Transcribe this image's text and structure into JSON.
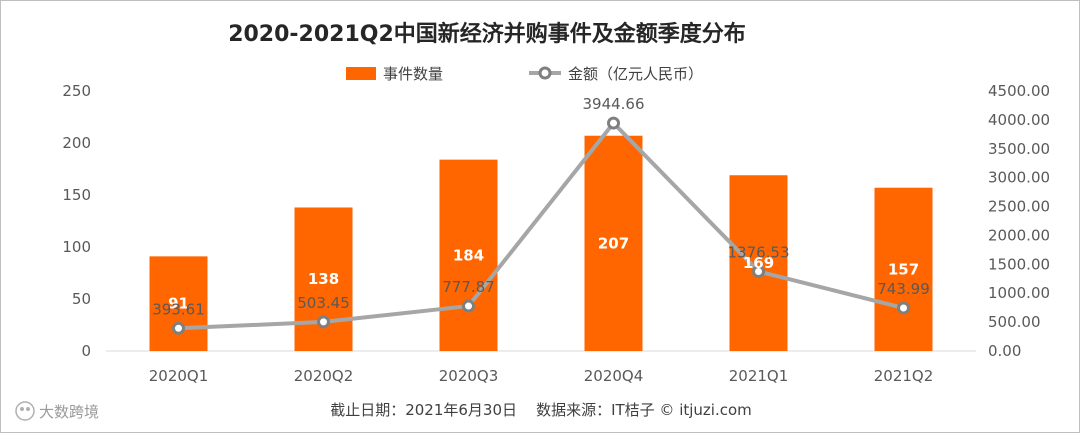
{
  "chart_data": {
    "type": "bar+line",
    "title": "2020-2021Q2中国新经济并购事件及金额季度分布",
    "categories": [
      "2020Q1",
      "2020Q2",
      "2020Q3",
      "2020Q4",
      "2021Q1",
      "2021Q2"
    ],
    "series": [
      {
        "name": "事件数量",
        "type": "bar",
        "axis": "left",
        "values": [
          91,
          138,
          184,
          207,
          169,
          157
        ],
        "color": "#ff6600"
      },
      {
        "name": "金额（亿元人民币）",
        "type": "line",
        "axis": "right",
        "values": [
          393.61,
          503.45,
          777.87,
          3944.66,
          1376.53,
          743.99
        ],
        "labels": [
          "393.61",
          "503.45",
          "777.87",
          "3944.66",
          "1376.53",
          "743.99"
        ],
        "color": "#a6a6a6"
      }
    ],
    "y_left": {
      "min": 0,
      "max": 250,
      "ticks": [
        "0",
        "50",
        "100",
        "150",
        "200",
        "250"
      ]
    },
    "y_right": {
      "min": 0,
      "max": 4500,
      "ticks": [
        "0.00",
        "500.00",
        "1000.00",
        "1500.00",
        "2000.00",
        "2500.00",
        "3000.00",
        "3500.00",
        "4000.00",
        "4500.00"
      ]
    },
    "legend_position": "top-center",
    "grid": false,
    "source_note": "截止日期：2021年6月30日    数据来源：IT桔子 © itjuzi.com"
  },
  "watermark": "大数跨境"
}
